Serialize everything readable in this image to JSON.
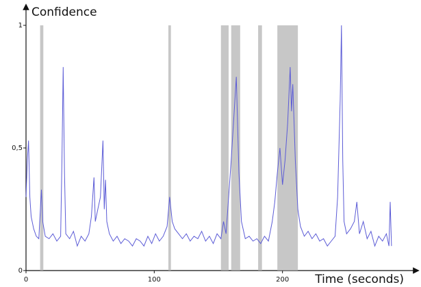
{
  "chart_data": {
    "type": "line",
    "y_label": "Confidence",
    "x_label": "Time (seconds)",
    "xlim": [
      0,
      300
    ],
    "ylim": [
      0,
      1
    ],
    "xticks": [
      0,
      100,
      200
    ],
    "yticks": [
      0,
      {
        "value": 0.5,
        "label": "0,5"
      },
      1
    ],
    "regions": [
      [
        11,
        13.5
      ],
      [
        111,
        113
      ],
      [
        152,
        158
      ],
      [
        160,
        167
      ],
      [
        181,
        184
      ],
      [
        196,
        212
      ]
    ],
    "region_color": "#b4b4b4",
    "x": [
      0,
      1,
      2,
      3,
      4,
      6,
      8,
      10,
      12,
      13,
      15,
      18,
      21,
      24,
      27,
      28,
      29,
      30,
      31,
      34,
      37,
      40,
      43,
      46,
      49,
      51,
      53,
      54,
      56,
      58,
      60,
      61,
      62,
      63,
      65,
      68,
      71,
      74,
      77,
      80,
      83,
      86,
      89,
      92,
      95,
      98,
      101,
      104,
      107,
      110,
      112,
      114,
      116,
      119,
      122,
      125,
      128,
      131,
      134,
      137,
      140,
      143,
      146,
      149,
      152,
      154,
      156,
      158,
      160,
      162,
      164,
      166,
      168,
      171,
      174,
      177,
      180,
      183,
      186,
      189,
      192,
      194,
      196,
      198,
      200,
      202,
      204,
      206,
      207,
      208,
      210,
      212,
      214,
      217,
      220,
      223,
      226,
      229,
      232,
      235,
      238,
      241,
      243,
      245,
      246,
      247,
      248,
      250,
      253,
      256,
      258,
      260,
      263,
      266,
      269,
      272,
      275,
      278,
      281,
      283,
      284,
      285
    ],
    "series": [
      {
        "color": "#5b5bd6",
        "values": [
          0.3,
          0.45,
          0.53,
          0.3,
          0.22,
          0.17,
          0.14,
          0.13,
          0.33,
          0.2,
          0.14,
          0.13,
          0.15,
          0.12,
          0.14,
          0.45,
          0.83,
          0.4,
          0.15,
          0.13,
          0.16,
          0.1,
          0.14,
          0.12,
          0.15,
          0.22,
          0.38,
          0.2,
          0.25,
          0.3,
          0.53,
          0.25,
          0.37,
          0.2,
          0.15,
          0.12,
          0.14,
          0.11,
          0.13,
          0.12,
          0.1,
          0.13,
          0.12,
          0.1,
          0.14,
          0.11,
          0.15,
          0.12,
          0.14,
          0.18,
          0.3,
          0.2,
          0.17,
          0.15,
          0.13,
          0.15,
          0.12,
          0.14,
          0.13,
          0.16,
          0.12,
          0.14,
          0.11,
          0.15,
          0.13,
          0.2,
          0.15,
          0.3,
          0.45,
          0.62,
          0.79,
          0.4,
          0.2,
          0.13,
          0.14,
          0.12,
          0.13,
          0.11,
          0.14,
          0.12,
          0.2,
          0.28,
          0.4,
          0.5,
          0.35,
          0.45,
          0.6,
          0.83,
          0.65,
          0.76,
          0.45,
          0.25,
          0.18,
          0.14,
          0.16,
          0.13,
          0.15,
          0.12,
          0.13,
          0.1,
          0.12,
          0.14,
          0.3,
          0.7,
          1.0,
          0.45,
          0.2,
          0.15,
          0.17,
          0.2,
          0.28,
          0.15,
          0.2,
          0.13,
          0.16,
          0.1,
          0.14,
          0.12,
          0.15,
          0.1,
          0.28,
          0.1
        ]
      }
    ]
  }
}
